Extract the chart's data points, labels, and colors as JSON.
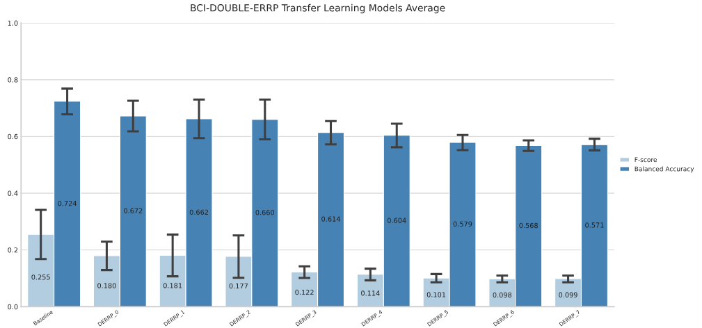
{
  "chart_data": {
    "type": "bar",
    "title": "BCI-DOUBLE-ERRP Transfer Learning Models Average",
    "categories": [
      "Baseline",
      "DERRP_0",
      "DERRP_1",
      "DERRP_2",
      "DERRP_3",
      "DERRP_4",
      "DERRP_5",
      "DERRP_6",
      "DERRP_7"
    ],
    "series": [
      {
        "name": "F-score",
        "color": "#b3cde0",
        "values": [
          0.255,
          0.18,
          0.181,
          0.177,
          0.122,
          0.114,
          0.101,
          0.098,
          0.099
        ],
        "value_labels": [
          "0.255",
          "0.180",
          "0.181",
          "0.177",
          "0.122",
          "0.114",
          "0.101",
          "0.098",
          "0.099"
        ],
        "errors": [
          [
            0.168,
            0.341
          ],
          [
            0.129,
            0.229
          ],
          [
            0.107,
            0.254
          ],
          [
            0.102,
            0.251
          ],
          [
            0.101,
            0.142
          ],
          [
            0.093,
            0.134
          ],
          [
            0.086,
            0.115
          ],
          [
            0.086,
            0.11
          ],
          [
            0.086,
            0.11
          ]
        ]
      },
      {
        "name": "Balanced Accuracy",
        "color": "#4682b4",
        "values": [
          0.724,
          0.672,
          0.662,
          0.66,
          0.614,
          0.604,
          0.579,
          0.568,
          0.571
        ],
        "value_labels": [
          "0.724",
          "0.672",
          "0.662",
          "0.660",
          "0.614",
          "0.604",
          "0.579",
          "0.568",
          "0.571"
        ],
        "errors": [
          [
            0.678,
            0.769
          ],
          [
            0.618,
            0.726
          ],
          [
            0.594,
            0.73
          ],
          [
            0.59,
            0.73
          ],
          [
            0.572,
            0.654
          ],
          [
            0.562,
            0.645
          ],
          [
            0.552,
            0.605
          ],
          [
            0.549,
            0.586
          ],
          [
            0.551,
            0.592
          ]
        ]
      }
    ],
    "ylim": [
      0,
      1
    ],
    "yticks": [
      {
        "value": 0,
        "label": "0.0"
      },
      0.2,
      0.4,
      0.6,
      0.8,
      {
        "value": 1,
        "label": "1.0"
      }
    ],
    "grid": "y",
    "legend": "right"
  }
}
